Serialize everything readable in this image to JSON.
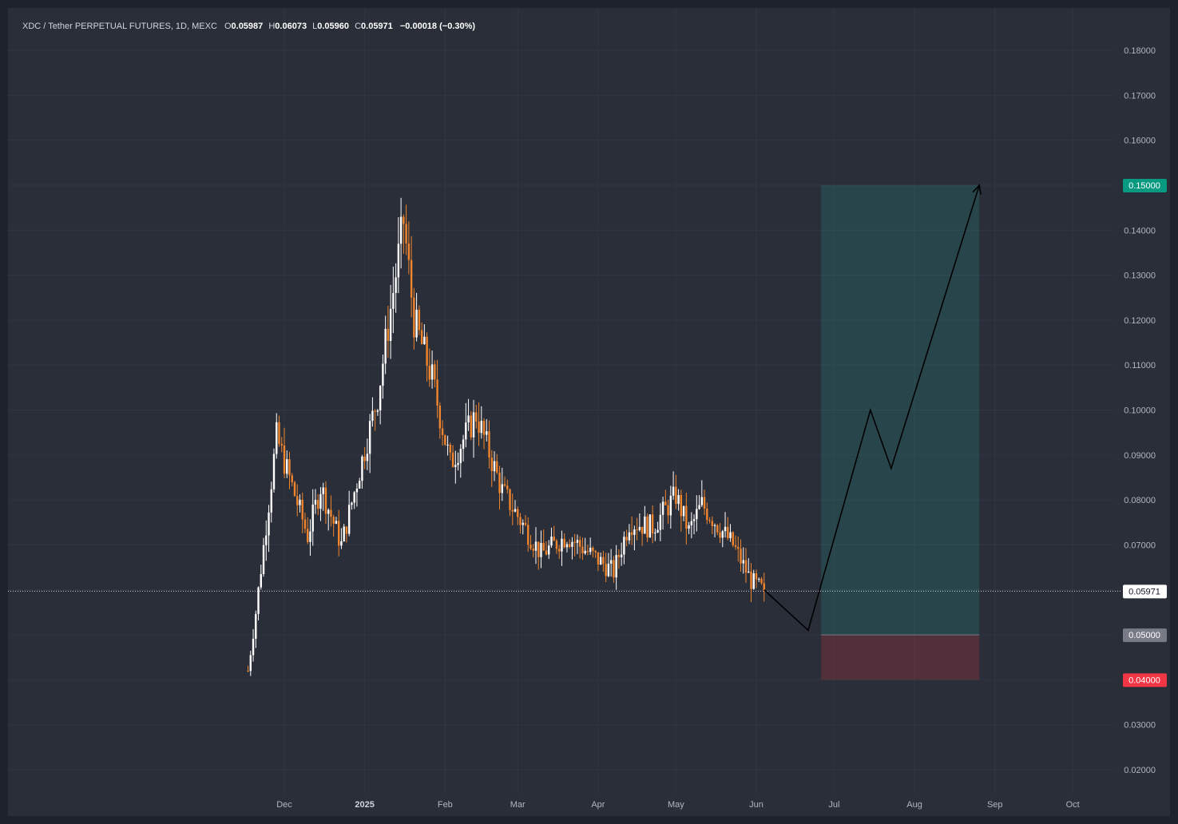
{
  "legend": {
    "symbol": "XDC / Tether PERPETUAL FUTURES, 1D, MEXC",
    "open_label": "O",
    "open": "0.05987",
    "high_label": "H",
    "high": "0.06073",
    "low_label": "L",
    "low": "0.05960",
    "close_label": "C",
    "close": "0.05971",
    "change": "−0.00018 (−0.30%)"
  },
  "price_axis": {
    "ticks": [
      "0.18000",
      "0.17000",
      "0.16000",
      "0.14000",
      "0.13000",
      "0.12000",
      "0.11000",
      "0.10000",
      "0.09000",
      "0.08000",
      "0.07000",
      "0.03000",
      "0.02000"
    ]
  },
  "time_axis": {
    "labels": [
      "Dec",
      "2025",
      "Feb",
      "Mar",
      "Apr",
      "May",
      "Jun",
      "Jul",
      "Aug",
      "Sep",
      "Oct"
    ]
  },
  "price_tags": {
    "current": "0.05971",
    "target": "0.15000",
    "entry": "0.05000",
    "stop": "0.04000"
  },
  "colors": {
    "background": "#2a2e39",
    "up_candle": "#ffffff",
    "down_candle": "#f0852d",
    "profit_zone": "#26a69a",
    "loss_zone": "#f23645",
    "target_tag": "#089981",
    "stop_tag": "#f23645",
    "entry_tag": "#787b86",
    "current_tag": "#ffffff"
  },
  "chart_data": {
    "type": "candlestick",
    "symbol": "XDC / Tether PERPETUAL FUTURES",
    "interval": "1D",
    "exchange": "MEXC",
    "ylim": [
      0.014,
      0.185
    ],
    "grid": true,
    "last_close": 0.05971,
    "price_path": [
      {
        "date": "2024-11-17",
        "price": 0.042
      },
      {
        "date": "2024-11-20",
        "price": 0.055
      },
      {
        "date": "2024-11-28",
        "price": 0.094
      },
      {
        "date": "2024-12-10",
        "price": 0.072
      },
      {
        "date": "2024-12-15",
        "price": 0.083
      },
      {
        "date": "2024-12-23",
        "price": 0.07
      },
      {
        "date": "2025-01-06",
        "price": 0.103
      },
      {
        "date": "2025-01-16",
        "price": 0.142
      },
      {
        "date": "2025-01-20",
        "price": 0.12
      },
      {
        "date": "2025-01-27",
        "price": 0.107
      },
      {
        "date": "2025-02-03",
        "price": 0.088
      },
      {
        "date": "2025-02-13",
        "price": 0.099
      },
      {
        "date": "2025-02-23",
        "price": 0.082
      },
      {
        "date": "2025-03-10",
        "price": 0.068
      },
      {
        "date": "2025-03-20",
        "price": 0.072
      },
      {
        "date": "2025-04-07",
        "price": 0.064
      },
      {
        "date": "2025-04-13",
        "price": 0.075
      },
      {
        "date": "2025-04-22",
        "price": 0.074
      },
      {
        "date": "2025-05-01",
        "price": 0.081
      },
      {
        "date": "2025-05-06",
        "price": 0.073
      },
      {
        "date": "2025-05-11",
        "price": 0.079
      },
      {
        "date": "2025-05-23",
        "price": 0.07
      },
      {
        "date": "2025-05-30",
        "price": 0.062
      },
      {
        "date": "2025-06-04",
        "price": 0.05971
      }
    ],
    "long_position": {
      "entry": 0.05,
      "target": 0.15,
      "stop": 0.04,
      "start": "2025-06-26",
      "end": "2025-08-26"
    },
    "projection_path": [
      {
        "date": "2025-06-04",
        "price": 0.06
      },
      {
        "date": "2025-06-21",
        "price": 0.051
      },
      {
        "date": "2025-07-15",
        "price": 0.1
      },
      {
        "date": "2025-07-23",
        "price": 0.087
      },
      {
        "date": "2025-08-26",
        "price": 0.15
      }
    ]
  }
}
